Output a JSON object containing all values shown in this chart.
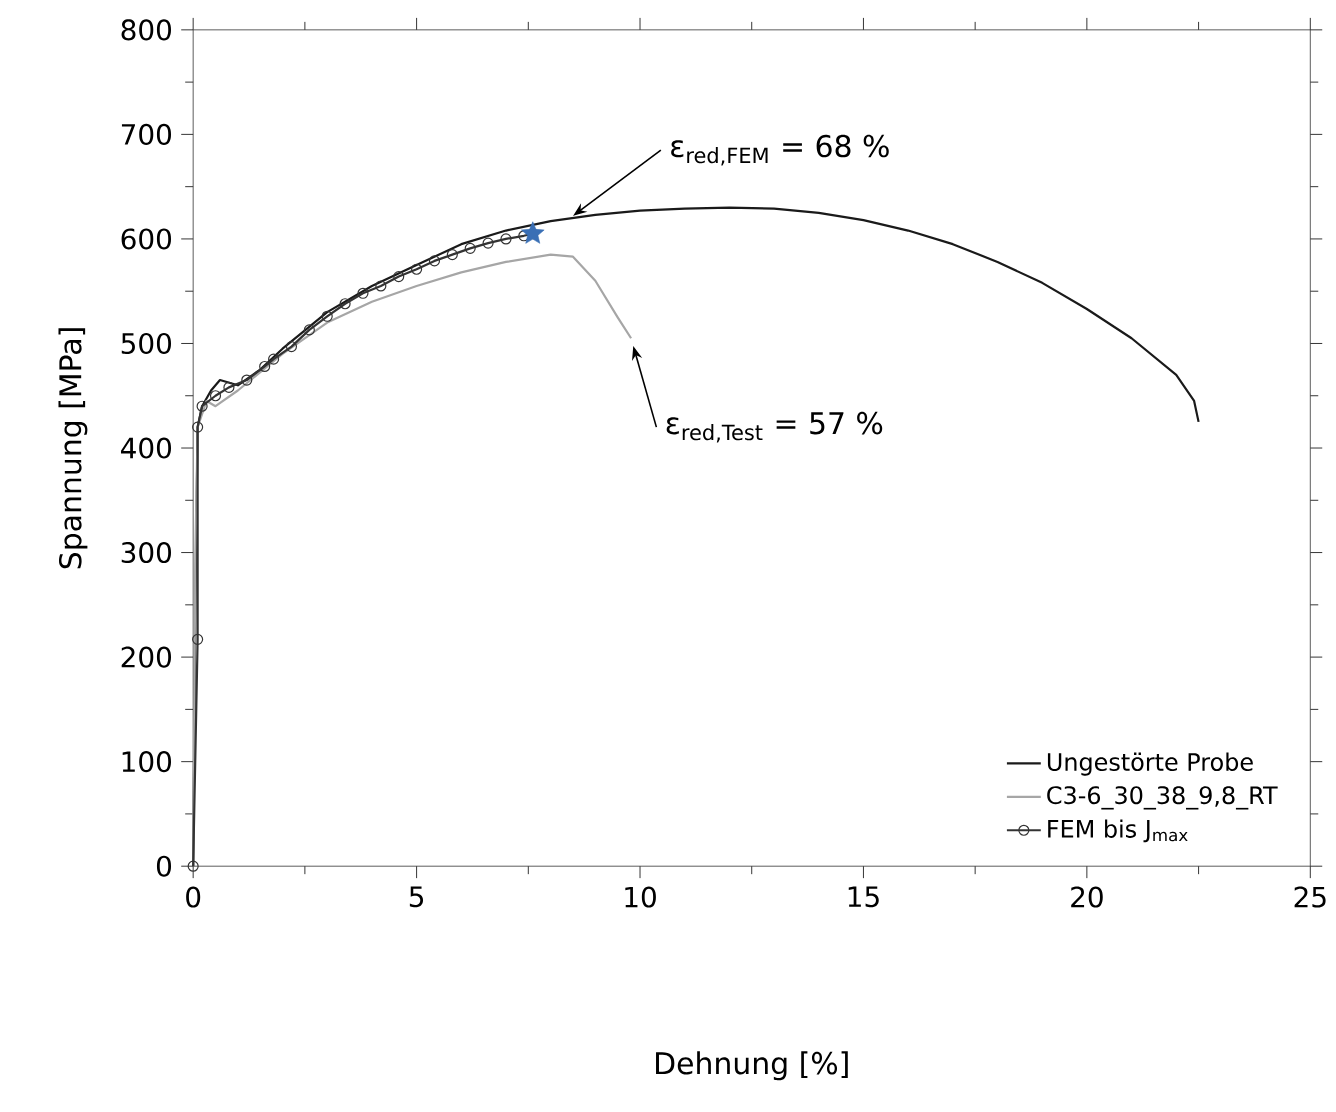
{
  "chart_data": {
    "type": "line",
    "xlabel": "Dehnung [%]",
    "ylabel": "Spannung [MPa]",
    "xlim": [
      0,
      25
    ],
    "ylim": [
      0,
      800
    ],
    "xticks": [
      0,
      5,
      10,
      15,
      20,
      25
    ],
    "yticks": [
      0,
      100,
      200,
      300,
      400,
      500,
      600,
      700,
      800
    ],
    "grid": false,
    "legend": "bottom right",
    "line_style": "solid",
    "series": [
      {
        "name": "Ungestörte Probe",
        "color": "#1a1a1a",
        "marker": "none",
        "x": [
          0,
          0.05,
          0.1,
          0.2,
          0.4,
          0.6,
          1,
          1.5,
          2,
          3,
          4,
          5,
          6,
          7,
          8,
          9,
          10,
          11,
          12,
          13,
          14,
          15,
          16,
          17,
          18,
          19,
          20,
          21,
          22,
          22.4,
          22.5
        ],
        "values": [
          0,
          250,
          420,
          440,
          455,
          465,
          460,
          475,
          495,
          530,
          555,
          575,
          595,
          608,
          617,
          623,
          627,
          629,
          630,
          629,
          625,
          618,
          608,
          595,
          578,
          558,
          533,
          505,
          470,
          445,
          425
        ]
      },
      {
        "name": "C3-6_30_38_9,8_RT",
        "color": "#a6a6a6",
        "marker": "none",
        "x": [
          0,
          0.05,
          0.1,
          0.3,
          0.5,
          1,
          2,
          3,
          4,
          5,
          6,
          7,
          8,
          8.5,
          9,
          9.5,
          9.8
        ],
        "values": [
          0,
          300,
          420,
          445,
          440,
          455,
          490,
          520,
          540,
          555,
          568,
          578,
          585,
          583,
          560,
          525,
          505
        ]
      },
      {
        "name": "FEM bis J$_{max}$",
        "color": "#333333",
        "marker": "circle",
        "x": [
          0,
          0.1,
          0.1,
          0.2,
          0.5,
          0.8,
          1.2,
          1.6,
          1.8,
          2.2,
          2.6,
          3,
          3.4,
          3.8,
          4.2,
          4.6,
          5,
          5.4,
          5.8,
          6.2,
          6.6,
          7,
          7.4,
          7.6
        ],
        "values": [
          0,
          217,
          420,
          440,
          450,
          458,
          465,
          478,
          485,
          497,
          513,
          526,
          538,
          548,
          555,
          564,
          571,
          579,
          585,
          591,
          596,
          600,
          603,
          605
        ]
      },
      {
        "type": "scatter",
        "color": "#3a6fb5",
        "marker": "star",
        "x": [
          7.6
        ],
        "values": [
          605
        ]
      }
    ],
    "annotations": [
      {
        "text": "ε$_{red,FEM}$ = 68 %",
        "x": 8.5,
        "y": 622
      },
      {
        "text": "ε$_{red,Test}$ = 57 %",
        "x": 9.8,
        "y": 505
      }
    ]
  }
}
